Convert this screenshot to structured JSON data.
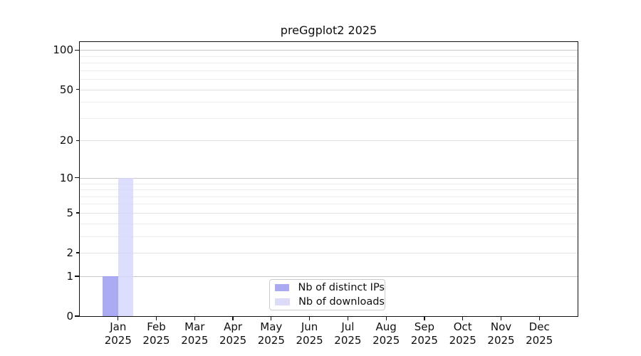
{
  "title": "preGgplot2 2025",
  "chart_data": {
    "type": "bar",
    "title": "preGgplot2 2025",
    "y_scale": "log1p",
    "ylim": [
      0,
      115
    ],
    "grid": true,
    "x_year": "2025",
    "categories": [
      "Jan",
      "Feb",
      "Mar",
      "Apr",
      "May",
      "Jun",
      "Jul",
      "Aug",
      "Sep",
      "Oct",
      "Nov",
      "Dec"
    ],
    "y_major_ticks": [
      0,
      1,
      10,
      100
    ],
    "y_labeled_minor_ticks": [
      2,
      5,
      20,
      50
    ],
    "y_minor_gridlines": [
      3,
      4,
      6,
      7,
      8,
      9,
      30,
      40,
      60,
      70,
      80,
      90
    ],
    "y_tick_labels": [
      "0",
      "1",
      "2",
      "5",
      "10",
      "20",
      "50",
      "100"
    ],
    "series": [
      {
        "name": "Nb of distinct IPs",
        "swatch_color": "#aaaaf2",
        "fill": "rgba(150,150,240,0.8)",
        "values": [
          1,
          0,
          0,
          0,
          0,
          0,
          0,
          0,
          0,
          0,
          0,
          0
        ]
      },
      {
        "name": "Nb of downloads",
        "swatch_color": "#dcdcf8",
        "fill": "rgba(212,212,252,0.8)",
        "values": [
          10,
          0,
          0,
          0,
          0,
          0,
          0,
          0,
          0,
          0,
          0,
          0
        ]
      }
    ],
    "legend": {
      "position": "lower center",
      "entries": [
        "Nb of distinct IPs",
        "Nb of downloads"
      ]
    }
  }
}
